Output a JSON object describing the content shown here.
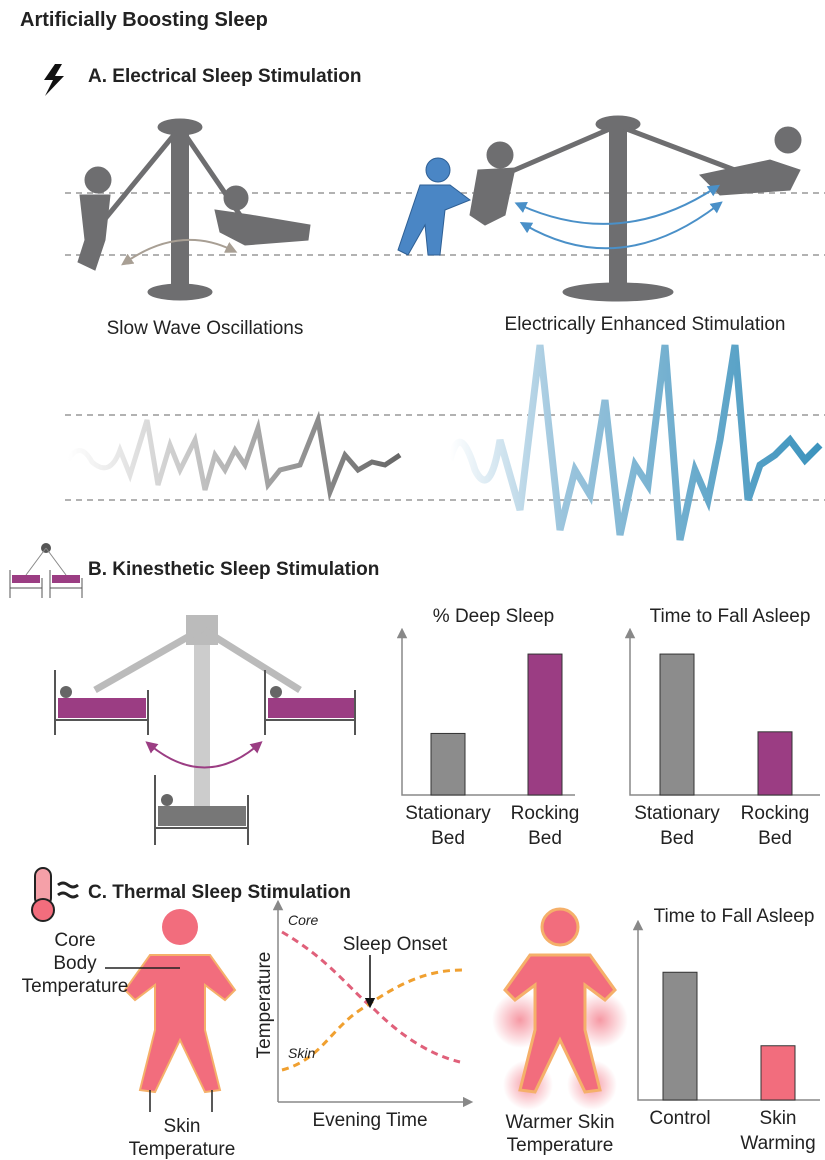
{
  "title": "Artificially Boosting Sleep",
  "section_a": {
    "heading": "A.  Electrical Sleep Stimulation",
    "left_label": "Slow Wave Oscillations",
    "right_label": "Electrically Enhanced Stimulation"
  },
  "section_b": {
    "heading": "B. Kinesthetic Sleep Stimulation",
    "charts": [
      {
        "type": "bar",
        "title": "% Deep Sleep",
        "categories": [
          "Stationary\nBed",
          "Rocking\nBed"
        ],
        "values": [
          38,
          87
        ],
        "colors": [
          "#8c8c8c",
          "#9b3d83"
        ],
        "ylim": [
          0,
          100
        ]
      },
      {
        "type": "bar",
        "title": "Time to Fall Asleep",
        "categories": [
          "Stationary\nBed",
          "Rocking\nBed"
        ],
        "values": [
          87,
          39
        ],
        "colors": [
          "#8c8c8c",
          "#9b3d83"
        ],
        "ylim": [
          0,
          100
        ]
      }
    ]
  },
  "section_c": {
    "heading": "C. Thermal Sleep Stimulation",
    "body_labels": {
      "core": "Core\nBody\nTemperature",
      "skin": "Skin\nTemperature"
    },
    "graph": {
      "y_label": "Temperature",
      "x_label": "Evening Time",
      "core": "Core",
      "skin": "Skin",
      "onset": "Sleep Onset"
    },
    "warmer": "Warmer Skin\nTemperature",
    "chart": {
      "type": "bar",
      "title": "Time to Fall Asleep",
      "categories": [
        "Control",
        "Skin\nWarming"
      ],
      "values": [
        73,
        31
      ],
      "colors": [
        "#8c8c8c",
        "#f26d7d"
      ],
      "ylim": [
        0,
        100
      ]
    }
  }
}
